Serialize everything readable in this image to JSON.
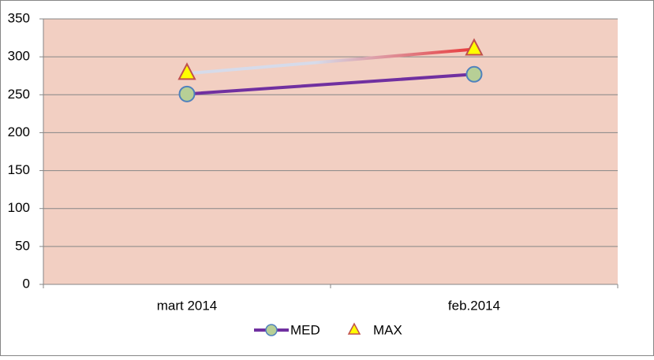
{
  "chart_data": {
    "type": "line",
    "categories": [
      "mart 2014",
      "feb.2014"
    ],
    "series": [
      {
        "name": "MED",
        "color": "#7030a0",
        "values": [
          251,
          277
        ]
      },
      {
        "name": "MAX",
        "color": "#e8393a",
        "values": [
          278,
          310
        ]
      }
    ],
    "ylim": [
      0,
      350
    ],
    "yticks": [
      0,
      50,
      100,
      150,
      200,
      250,
      300,
      350
    ],
    "grid": true
  }
}
